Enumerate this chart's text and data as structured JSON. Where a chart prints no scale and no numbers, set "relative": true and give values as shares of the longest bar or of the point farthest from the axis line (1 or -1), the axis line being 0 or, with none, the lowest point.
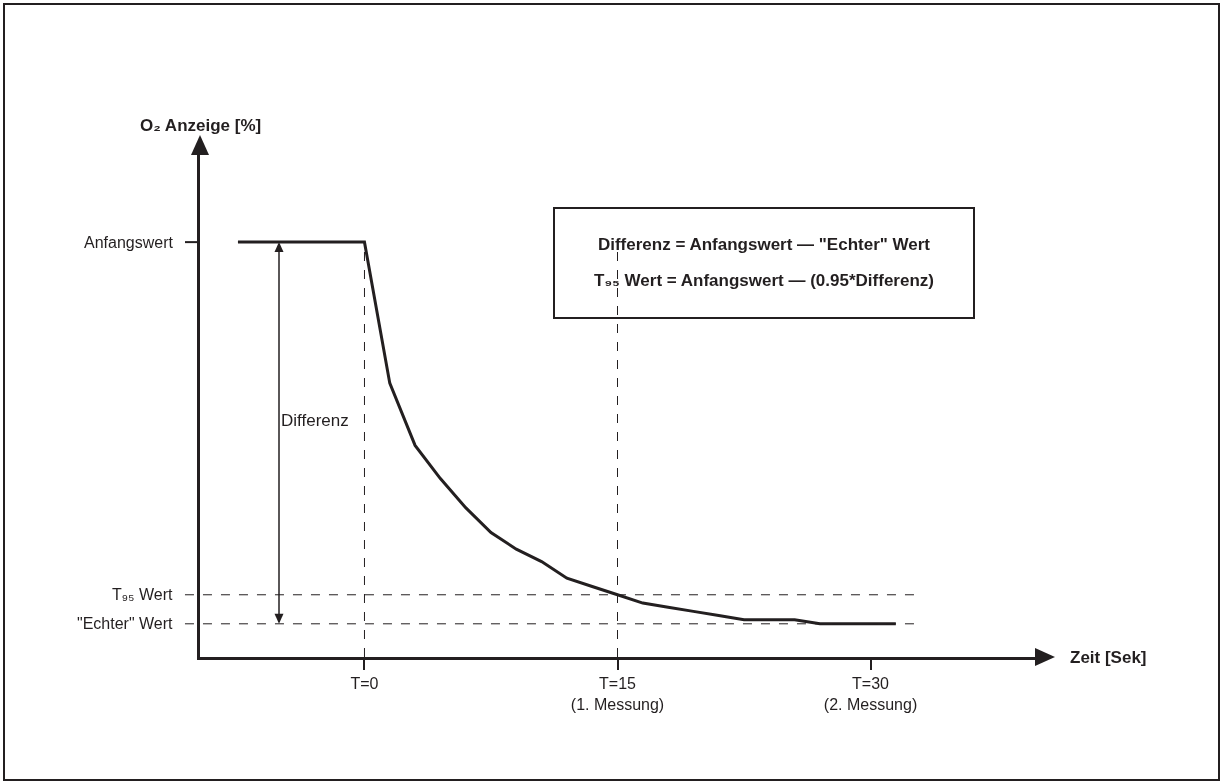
{
  "chart_data": {
    "type": "line",
    "relative": true,
    "xlabel": "Zeit [Sek]",
    "categories": [
      null,
      null,
      null,
      null,
      null,
      null,
      "T=0",
      null,
      null,
      null,
      null,
      null,
      null,
      null,
      null,
      null,
      "T=15\n(1. Messung)",
      null,
      null,
      null,
      null,
      null,
      null,
      null,
      null,
      null,
      "T=30\n(2. Messung)",
      null,
      null,
      null,
      null,
      null,
      null
    ],
    "values": [
      null,
      1,
      1,
      1,
      1,
      1,
      1,
      0.66,
      0.51,
      0.43,
      0.36,
      0.3,
      0.26,
      0.23,
      0.19,
      0.17,
      0.15,
      0.13,
      0.12,
      0.11,
      0.1,
      0.09,
      0.09,
      0.09,
      0.08,
      0.08,
      0.08,
      0.08,
      null,
      null,
      null,
      null,
      null
    ],
    "color": "#231f20",
    "line_style": "solid",
    "ref_lines": [
      {
        "axis": "y",
        "value": 1,
        "label": "Anfangswert",
        "line_style": "solid"
      },
      {
        "axis": "y",
        "value": 0.15,
        "label": "T₉₅ Wert",
        "line_style": "dashed"
      },
      {
        "axis": "y",
        "value": 0.08,
        "label": "\"Echter\" Wert",
        "line_style": "dashed"
      },
      {
        "axis": "x",
        "value": "T=0",
        "line_style": "dashed"
      },
      {
        "axis": "x",
        "value": "T=15\n(1. Messung)",
        "line_style": "dashed"
      }
    ],
    "annotations": [
      "Differenz",
      "O₂ Anzeige [%]",
      "Differenz = Anfangswert — \"Echter\" Wert",
      "T₉₅ Wert = Anfangswert — (0.95*Differenz)"
    ]
  }
}
